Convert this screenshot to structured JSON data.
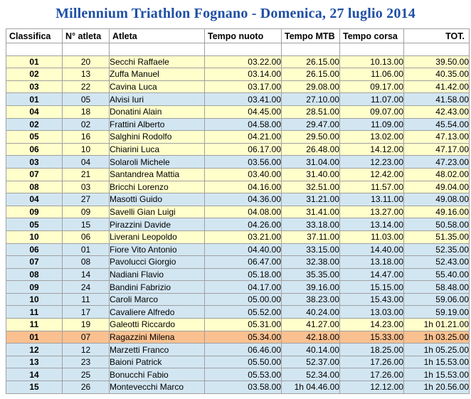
{
  "title": "Millennium Triathlon Fognano - Domenica, 27 luglio 2014",
  "colors": {
    "title": "#1E4FA6",
    "border": "#A0A0A0",
    "text": "#000000",
    "row_yellow": "#FFFFCC",
    "row_blue": "#D2E6F2",
    "row_orange": "#FAC090",
    "row_white": "#FFFFFF"
  },
  "table": {
    "columns": [
      {
        "key": "classifica",
        "label": "Classifica"
      },
      {
        "key": "numero",
        "label": "N° atleta"
      },
      {
        "key": "atleta",
        "label": "Atleta"
      },
      {
        "key": "nuoto",
        "label": "Tempo nuoto"
      },
      {
        "key": "mtb",
        "label": "Tempo MTB"
      },
      {
        "key": "corsa",
        "label": "Tempo corsa"
      },
      {
        "key": "tot",
        "label": "TOT."
      }
    ],
    "has_spacer_row": true,
    "rows": [
      {
        "classifica": "01",
        "numero": "20",
        "atleta": "Secchi Raffaele",
        "nuoto": "03.22.00",
        "mtb": "26.15.00",
        "corsa": "10.13.00",
        "tot": "39.50.00",
        "color": "yellow"
      },
      {
        "classifica": "02",
        "numero": "13",
        "atleta": "Zuffa Manuel",
        "nuoto": "03.14.00",
        "mtb": "26.15.00",
        "corsa": "11.06.00",
        "tot": "40.35.00",
        "color": "yellow"
      },
      {
        "classifica": "03",
        "numero": "22",
        "atleta": "Cavina Luca",
        "nuoto": "03.17.00",
        "mtb": "29.08.00",
        "corsa": "09.17.00",
        "tot": "41.42.00",
        "color": "yellow"
      },
      {
        "classifica": "01",
        "numero": "05",
        "atleta": "Alvisi Iuri",
        "nuoto": "03.41.00",
        "mtb": "27.10.00",
        "corsa": "11.07.00",
        "tot": "41.58.00",
        "color": "blue"
      },
      {
        "classifica": "04",
        "numero": "18",
        "atleta": "Donatini Alain",
        "nuoto": "04.45.00",
        "mtb": "28.51.00",
        "corsa": "09.07.00",
        "tot": "42.43.00",
        "color": "yellow"
      },
      {
        "classifica": "02",
        "numero": "02",
        "atleta": "Frattini Alberto",
        "nuoto": "04.58.00",
        "mtb": "29.47.00",
        "corsa": "11.09.00",
        "tot": "45.54.00",
        "color": "blue"
      },
      {
        "classifica": "05",
        "numero": "16",
        "atleta": "Salghini Rodolfo",
        "nuoto": "04.21.00",
        "mtb": "29.50.00",
        "corsa": "13.02.00",
        "tot": "47.13.00",
        "color": "yellow"
      },
      {
        "classifica": "06",
        "numero": "10",
        "atleta": "Chiarini Luca",
        "nuoto": "06.17.00",
        "mtb": "26.48.00",
        "corsa": "14.12.00",
        "tot": "47.17.00",
        "color": "yellow"
      },
      {
        "classifica": "03",
        "numero": "04",
        "atleta": "Solaroli Michele",
        "nuoto": "03.56.00",
        "mtb": "31.04.00",
        "corsa": "12.23.00",
        "tot": "47.23.00",
        "color": "blue"
      },
      {
        "classifica": "07",
        "numero": "21",
        "atleta": "Santandrea Mattia",
        "nuoto": "03.40.00",
        "mtb": "31.40.00",
        "corsa": "12.42.00",
        "tot": "48.02.00",
        "color": "yellow"
      },
      {
        "classifica": "08",
        "numero": "03",
        "atleta": "Bricchi Lorenzo",
        "nuoto": "04.16.00",
        "mtb": "32.51.00",
        "corsa": "11.57.00",
        "tot": "49.04.00",
        "color": "yellow"
      },
      {
        "classifica": "04",
        "numero": "27",
        "atleta": "Masotti Guido",
        "nuoto": "04.36.00",
        "mtb": "31.21.00",
        "corsa": "13.11.00",
        "tot": "49.08.00",
        "color": "blue"
      },
      {
        "classifica": "09",
        "numero": "09",
        "atleta": "Savelli Gian Luigi",
        "nuoto": "04.08.00",
        "mtb": "31.41.00",
        "corsa": "13.27.00",
        "tot": "49.16.00",
        "color": "yellow"
      },
      {
        "classifica": "05",
        "numero": "15",
        "atleta": "Pirazzini Davide",
        "nuoto": "04.26.00",
        "mtb": "33.18.00",
        "corsa": "13.14.00",
        "tot": "50.58.00",
        "color": "blue"
      },
      {
        "classifica": "10",
        "numero": "06",
        "atleta": "Liverani Leopoldo",
        "nuoto": "03.21.00",
        "mtb": "37.11.00",
        "corsa": "11.03.00",
        "tot": "51.35.00",
        "color": "yellow"
      },
      {
        "classifica": "06",
        "numero": "01",
        "atleta": "Fiore Vito Antonio",
        "nuoto": "04.40.00",
        "mtb": "33.15.00",
        "corsa": "14.40.00",
        "tot": "52.35.00",
        "color": "blue"
      },
      {
        "classifica": "07",
        "numero": "08",
        "atleta": "Pavolucci Giorgio",
        "nuoto": "06.47.00",
        "mtb": "32.38.00",
        "corsa": "13.18.00",
        "tot": "52.43.00",
        "color": "blue"
      },
      {
        "classifica": "08",
        "numero": "14",
        "atleta": "Nadiani Flavio",
        "nuoto": "05.18.00",
        "mtb": "35.35.00",
        "corsa": "14.47.00",
        "tot": "55.40.00",
        "color": "blue"
      },
      {
        "classifica": "09",
        "numero": "24",
        "atleta": "Bandini Fabrizio",
        "nuoto": "04.17.00",
        "mtb": "39.16.00",
        "corsa": "15.15.00",
        "tot": "58.48.00",
        "color": "blue"
      },
      {
        "classifica": "10",
        "numero": "11",
        "atleta": "Caroli Marco",
        "nuoto": "05.00.00",
        "mtb": "38.23.00",
        "corsa": "15.43.00",
        "tot": "59.06.00",
        "color": "blue"
      },
      {
        "classifica": "11",
        "numero": "17",
        "atleta": "Cavaliere Alfredo",
        "nuoto": "05.52.00",
        "mtb": "40.24.00",
        "corsa": "13.03.00",
        "tot": "59.19.00",
        "color": "blue"
      },
      {
        "classifica": "11",
        "numero": "19",
        "atleta": "Galeotti Riccardo",
        "nuoto": "05.31.00",
        "mtb": "41.27.00",
        "corsa": "14.23.00",
        "tot": "1h 01.21.00",
        "color": "yellow"
      },
      {
        "classifica": "01",
        "numero": "07",
        "atleta": "Ragazzini Milena",
        "nuoto": "05.34.00",
        "mtb": "42.18.00",
        "corsa": "15.33.00",
        "tot": "1h 03.25.00",
        "color": "orange"
      },
      {
        "classifica": "12",
        "numero": "12",
        "atleta": "Marzetti Franco",
        "nuoto": "06.46.00",
        "mtb": "40.14.00",
        "corsa": "18.25.00",
        "tot": "1h 05.25.00",
        "color": "blue"
      },
      {
        "classifica": "13",
        "numero": "23",
        "atleta": "Baioni Patrick",
        "nuoto": "05.50.00",
        "mtb": "52.37.00",
        "corsa": "17.26.00",
        "tot": "1h 15.53.00",
        "color": "blue"
      },
      {
        "classifica": "14",
        "numero": "25",
        "atleta": "Bonucchi Fabio",
        "nuoto": "05.53.00",
        "mtb": "52.34.00",
        "corsa": "17.26.00",
        "tot": "1h 15.53.00",
        "color": "blue"
      },
      {
        "classifica": "15",
        "numero": "26",
        "atleta": "Montevecchi Marco",
        "nuoto": "03.58.00",
        "mtb": "1h 04.46.00",
        "corsa": "12.12.00",
        "tot": "1h 20.56.00",
        "color": "blue"
      }
    ]
  }
}
